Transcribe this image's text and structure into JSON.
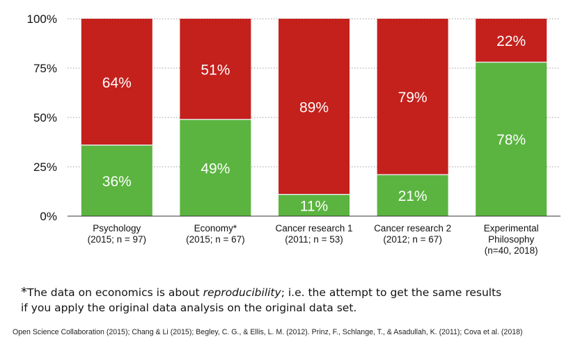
{
  "chart_data": {
    "type": "bar",
    "stacked": true,
    "categories": [
      [
        "Psychology",
        "(2015; n = 97)"
      ],
      [
        "Economy*",
        "(2015; n = 67)"
      ],
      [
        "Cancer research 1",
        "(2011; n = 53)"
      ],
      [
        "Cancer research 2",
        "(2012; n = 67)"
      ],
      [
        "Experimental",
        "Philosophy",
        "(n=40, 2018)"
      ]
    ],
    "series": [
      {
        "color": "#5ab43f",
        "values": [
          36,
          49,
          11,
          21,
          78
        ]
      },
      {
        "color": "#c4201c",
        "values": [
          64,
          51,
          89,
          79,
          22
        ]
      }
    ],
    "value_labels": {
      "green": [
        "36%",
        "49%",
        "11%",
        "21%",
        "78%"
      ],
      "red": [
        "64%",
        "51%",
        "89%",
        "79%",
        "22%"
      ]
    },
    "ylim": [
      0,
      100
    ],
    "yticks": [
      0,
      25,
      50,
      75,
      100
    ],
    "ytick_labels": [
      "0%",
      "25%",
      "50%",
      "75%",
      "100%"
    ],
    "grid": "dotted horizontal"
  },
  "footnote": {
    "star": "*",
    "part1": "The data on economics is about ",
    "emphasis": "reproducibility",
    "part2": "; i.e. the attempt to get the same results",
    "line2": "if you apply the original data analysis on the original data set."
  },
  "references": "Open Science Collaboration (2015); Chang & Li (2015); Begley, C. G., & Ellis, L. M. (2012). Prinz, F., Schlange, T., & Asadullah, K. (2011); Cova et al. (2018)"
}
